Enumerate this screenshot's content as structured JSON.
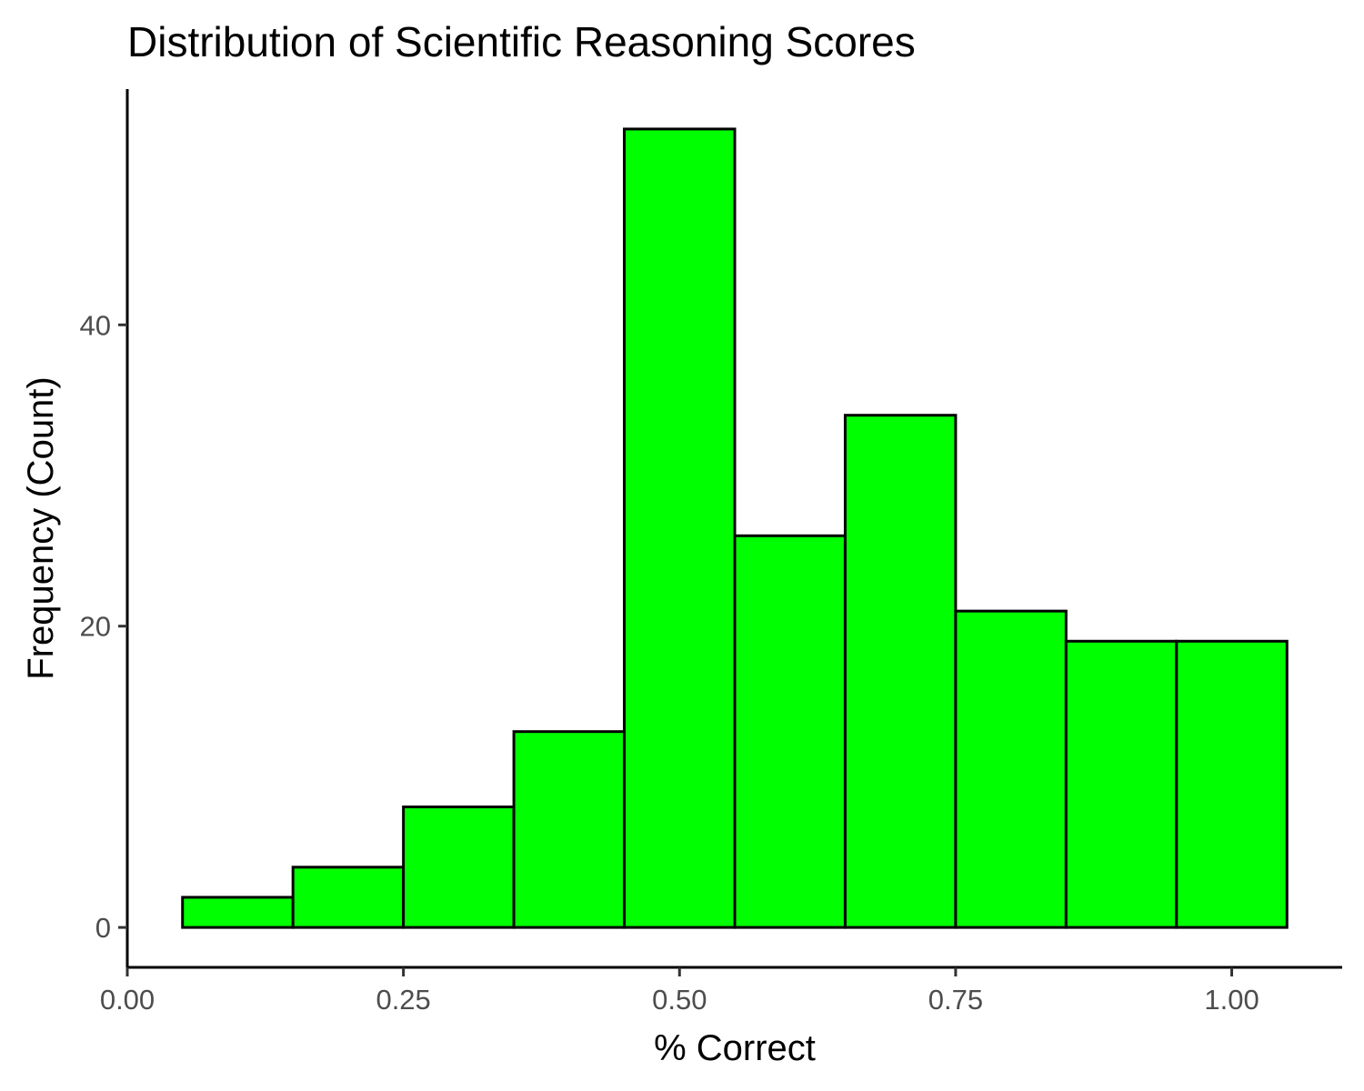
{
  "chart_data": {
    "type": "bar",
    "title": "Distribution of Scientific Reasoning Scores",
    "xlabel": "% Correct",
    "ylabel": "Frequency (Count)",
    "bins": [
      {
        "start": 0.05,
        "end": 0.15,
        "count": 2
      },
      {
        "start": 0.15,
        "end": 0.25,
        "count": 4
      },
      {
        "start": 0.25,
        "end": 0.35,
        "count": 8
      },
      {
        "start": 0.35,
        "end": 0.45,
        "count": 13
      },
      {
        "start": 0.45,
        "end": 0.55,
        "count": 53
      },
      {
        "start": 0.55,
        "end": 0.65,
        "count": 26
      },
      {
        "start": 0.65,
        "end": 0.75,
        "count": 34
      },
      {
        "start": 0.75,
        "end": 0.85,
        "count": 21
      },
      {
        "start": 0.85,
        "end": 0.95,
        "count": 19
      },
      {
        "start": 0.95,
        "end": 1.05,
        "count": 19
      }
    ],
    "xlim": [
      0.0,
      1.1
    ],
    "ylim": [
      -2.65,
      55.65
    ],
    "x_ticks": [
      0.0,
      0.25,
      0.5,
      0.75,
      1.0
    ],
    "x_tick_labels": [
      "0.00",
      "0.25",
      "0.50",
      "0.75",
      "1.00"
    ],
    "y_ticks": [
      0,
      20,
      40
    ],
    "y_tick_labels": [
      "0",
      "20",
      "40"
    ],
    "grid": false,
    "legend": "none",
    "bar_color": "#00ff00",
    "bar_outline_color": "#000000"
  }
}
